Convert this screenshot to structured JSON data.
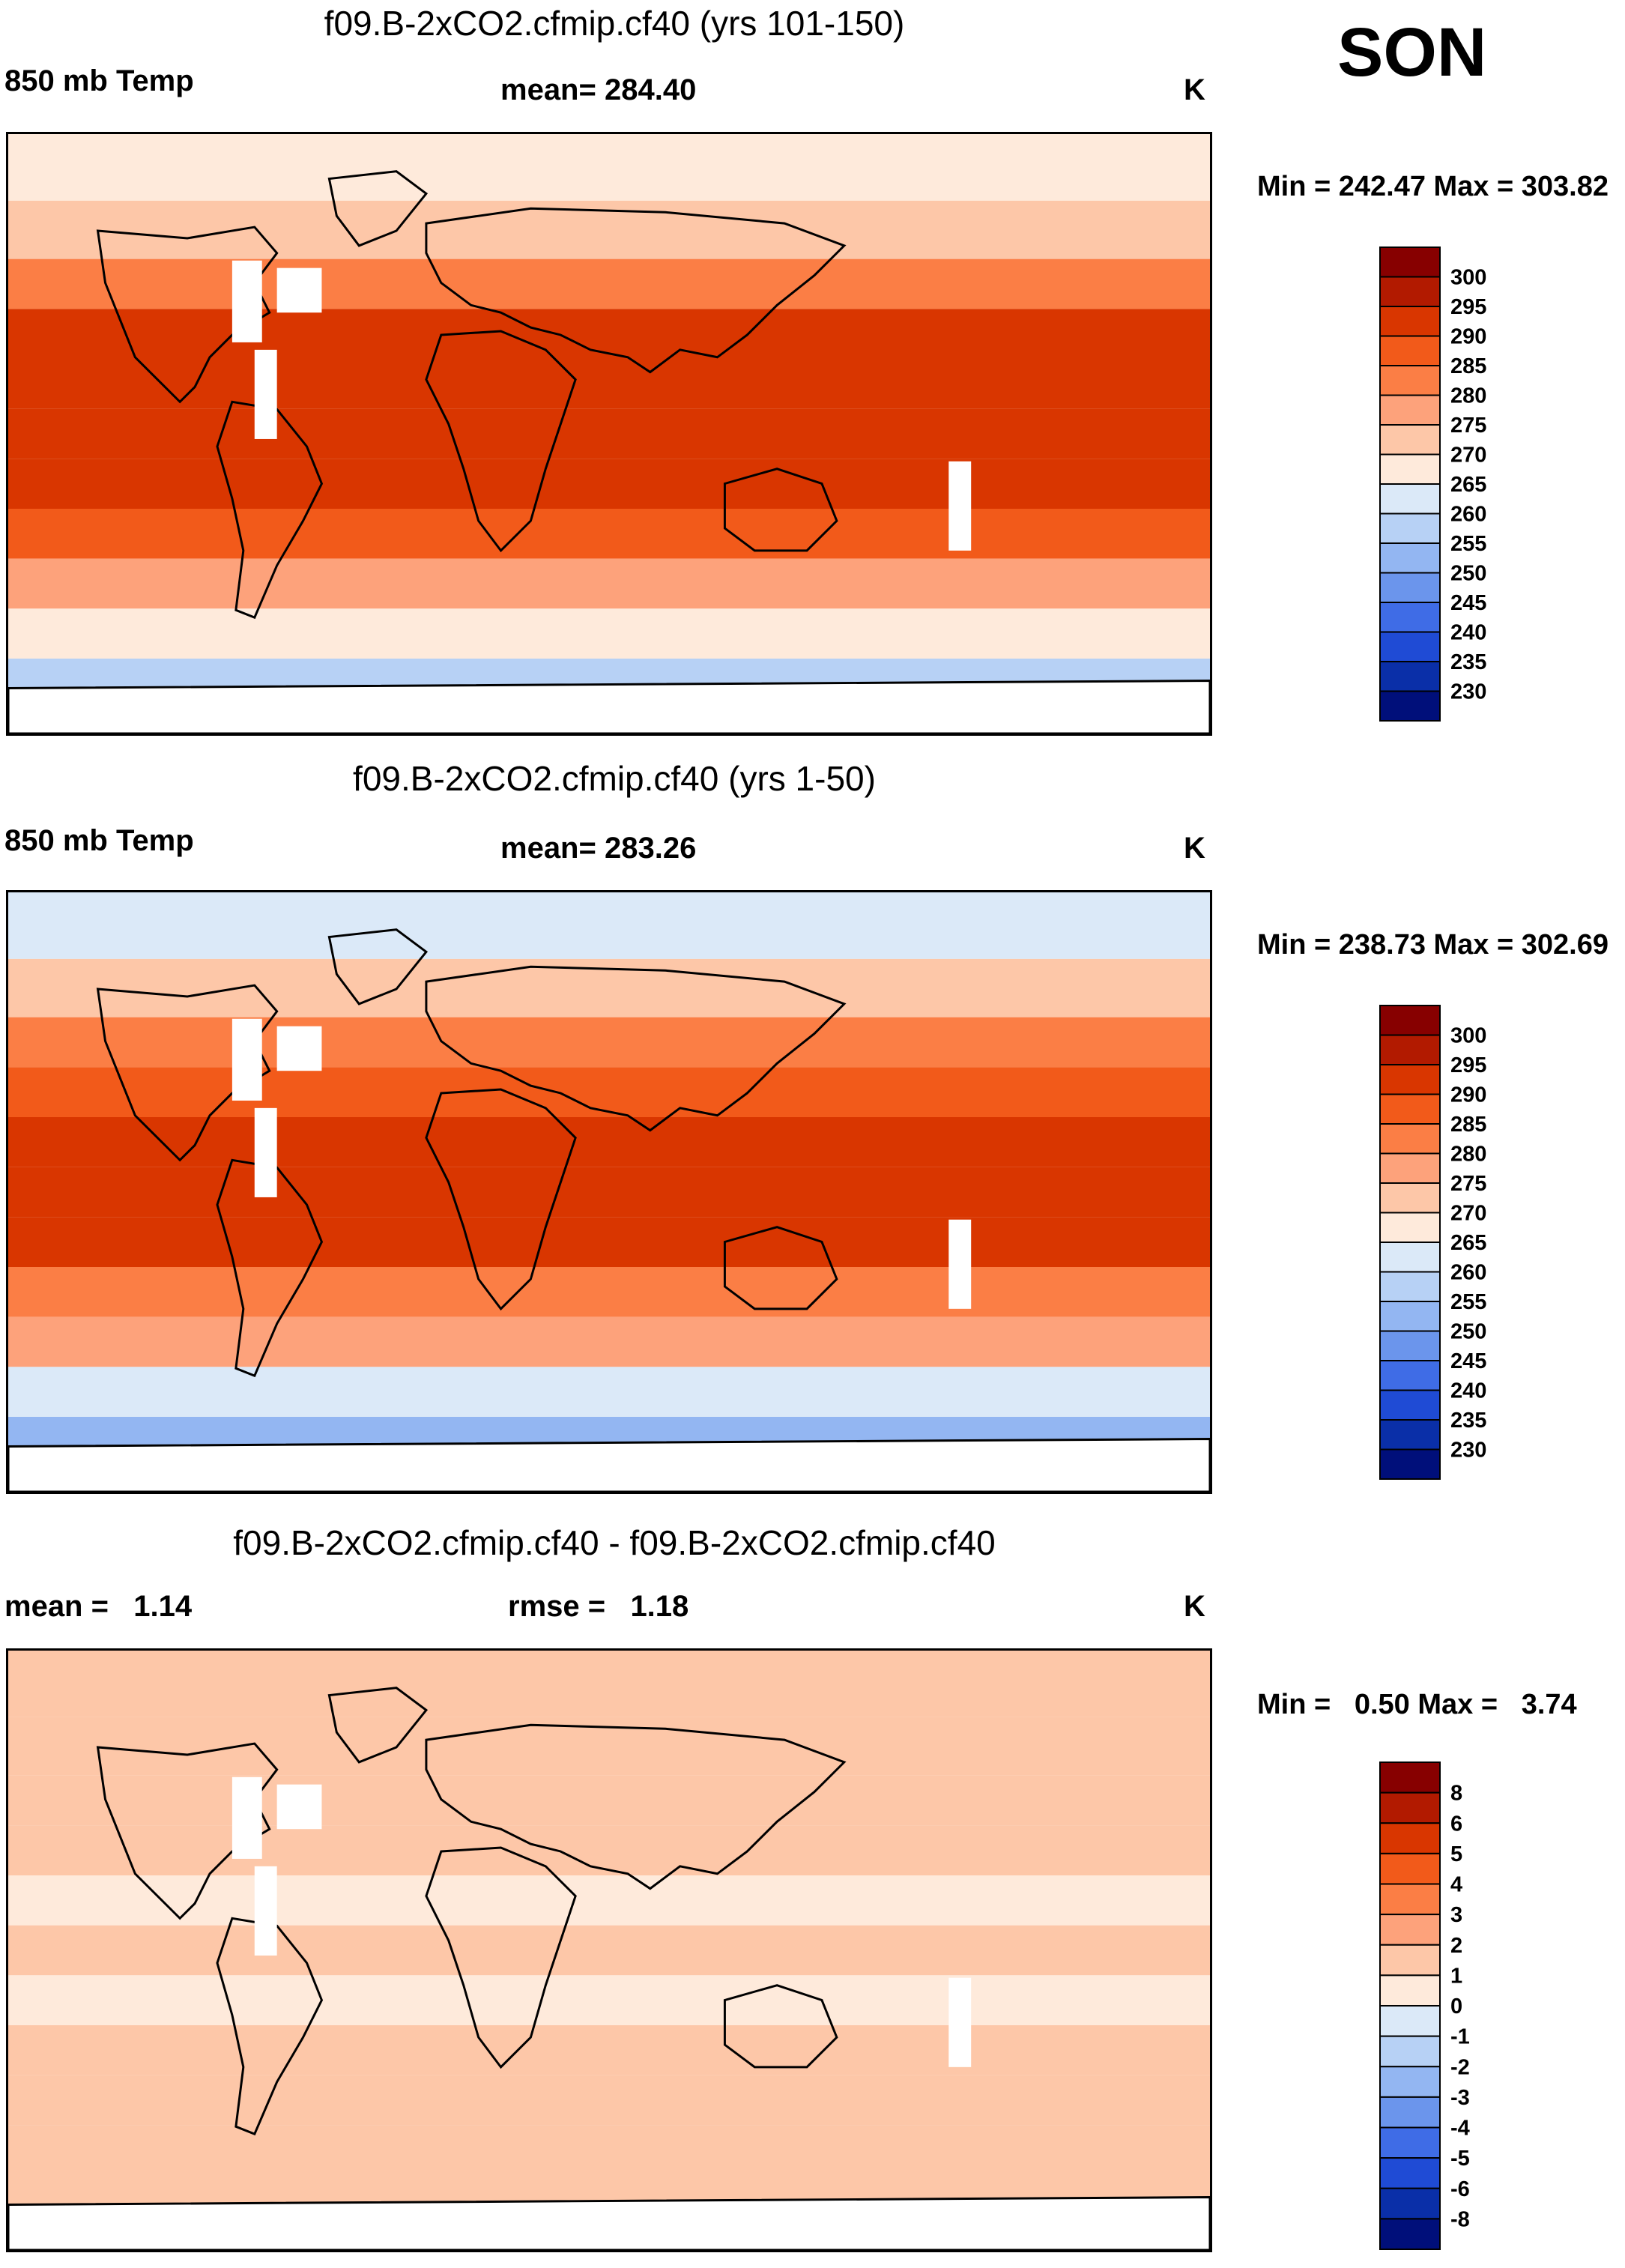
{
  "season": "SON",
  "panels": [
    {
      "title": "f09.B-2xCO2.cfmip.cf40 (yrs 101-150)",
      "left_label": "850 mb Temp",
      "center_label": "mean= 284.40",
      "unit": "K",
      "minmax": "Min = 242.47 Max = 303.82",
      "colorbar_labels": [
        "300",
        "295",
        "290",
        "285",
        "280",
        "275",
        "270",
        "265",
        "260",
        "255",
        "250",
        "245",
        "240",
        "235",
        "230"
      ]
    },
    {
      "title": "f09.B-2xCO2.cfmip.cf40 (yrs 1-50)",
      "left_label": "850 mb Temp",
      "center_label": "mean= 283.26",
      "unit": "K",
      "minmax": "Min = 238.73 Max = 302.69",
      "colorbar_labels": [
        "300",
        "295",
        "290",
        "285",
        "280",
        "275",
        "270",
        "265",
        "260",
        "255",
        "250",
        "245",
        "240",
        "235",
        "230"
      ]
    },
    {
      "title": "f09.B-2xCO2.cfmip.cf40 - f09.B-2xCO2.cfmip.cf40",
      "left_label": "mean =   1.14",
      "center_label": "rmse =   1.18",
      "unit": "K",
      "minmax": "Min =   0.50 Max =   3.74",
      "colorbar_labels": [
        "8",
        "6",
        "5",
        "4",
        "3",
        "2",
        "1",
        "0",
        "-1",
        "-2",
        "-3",
        "-4",
        "-5",
        "-6",
        "-8"
      ]
    }
  ],
  "colors": {
    "scale": [
      "#870000",
      "#b21a00",
      "#d93600",
      "#f25a1a",
      "#fb7e45",
      "#fda27b",
      "#fdc7a8",
      "#feeadb",
      "#dbe9f8",
      "#b7d1f5",
      "#93b6f2",
      "#6b95ec",
      "#3f6ce6",
      "#1f4bd5",
      "#0a2fa8",
      "#000f7a"
    ],
    "diff_scale": [
      "#870000",
      "#b21a00",
      "#d93600",
      "#f25a1a",
      "#fb7e45",
      "#fda27b",
      "#fdc7a8",
      "#feeadb",
      "#dbe9f8",
      "#b7d1f5",
      "#93b6f2",
      "#6b95ec",
      "#3f6ce6",
      "#1f4bd5",
      "#0a2fa8",
      "#000f7a"
    ]
  },
  "chart_data": [
    {
      "type": "heatmap",
      "title": "f09.B-2xCO2.cfmip.cf40 (yrs 101-150)",
      "variable": "850 mb Temp",
      "units": "K",
      "mean": 284.4,
      "min": 242.47,
      "max": 303.82,
      "levels": [
        230,
        235,
        240,
        245,
        250,
        255,
        260,
        265,
        270,
        275,
        280,
        285,
        290,
        295,
        300
      ],
      "zonal_bands": [
        {
          "lat": 80,
          "value": 265
        },
        {
          "lat": 60,
          "value": 272
        },
        {
          "lat": 45,
          "value": 282
        },
        {
          "lat": 30,
          "value": 290
        },
        {
          "lat": 15,
          "value": 293
        },
        {
          "lat": 0,
          "value": 292
        },
        {
          "lat": -15,
          "value": 291
        },
        {
          "lat": -30,
          "value": 285
        },
        {
          "lat": -45,
          "value": 276
        },
        {
          "lat": -60,
          "value": 266
        },
        {
          "lat": -75,
          "value": 255
        }
      ]
    },
    {
      "type": "heatmap",
      "title": "f09.B-2xCO2.cfmip.cf40 (yrs 1-50)",
      "variable": "850 mb Temp",
      "units": "K",
      "mean": 283.26,
      "min": 238.73,
      "max": 302.69,
      "levels": [
        230,
        235,
        240,
        245,
        250,
        255,
        260,
        265,
        270,
        275,
        280,
        285,
        290,
        295,
        300
      ],
      "zonal_bands": [
        {
          "lat": 80,
          "value": 262
        },
        {
          "lat": 60,
          "value": 271
        },
        {
          "lat": 45,
          "value": 281
        },
        {
          "lat": 30,
          "value": 289
        },
        {
          "lat": 15,
          "value": 292
        },
        {
          "lat": 0,
          "value": 291
        },
        {
          "lat": -15,
          "value": 290
        },
        {
          "lat": -30,
          "value": 284
        },
        {
          "lat": -45,
          "value": 275
        },
        {
          "lat": -60,
          "value": 264
        },
        {
          "lat": -75,
          "value": 253
        }
      ]
    },
    {
      "type": "heatmap",
      "title": "f09.B-2xCO2.cfmip.cf40 - f09.B-2xCO2.cfmip.cf40",
      "units": "K",
      "mean": 1.14,
      "rmse": 1.18,
      "min": 0.5,
      "max": 3.74,
      "levels": [
        -8,
        -6,
        -5,
        -4,
        -3,
        -2,
        -1,
        0,
        1,
        2,
        3,
        4,
        5,
        6,
        8
      ],
      "zonal_bands": [
        {
          "lat": 80,
          "value": 1.5
        },
        {
          "lat": 60,
          "value": 1.4
        },
        {
          "lat": 45,
          "value": 1.2
        },
        {
          "lat": 30,
          "value": 1.1
        },
        {
          "lat": 15,
          "value": 0.9
        },
        {
          "lat": 0,
          "value": 1.0
        },
        {
          "lat": -15,
          "value": 0.9
        },
        {
          "lat": -30,
          "value": 1.1
        },
        {
          "lat": -45,
          "value": 1.2
        },
        {
          "lat": -60,
          "value": 1.3
        },
        {
          "lat": -75,
          "value": 1.4
        }
      ]
    }
  ]
}
